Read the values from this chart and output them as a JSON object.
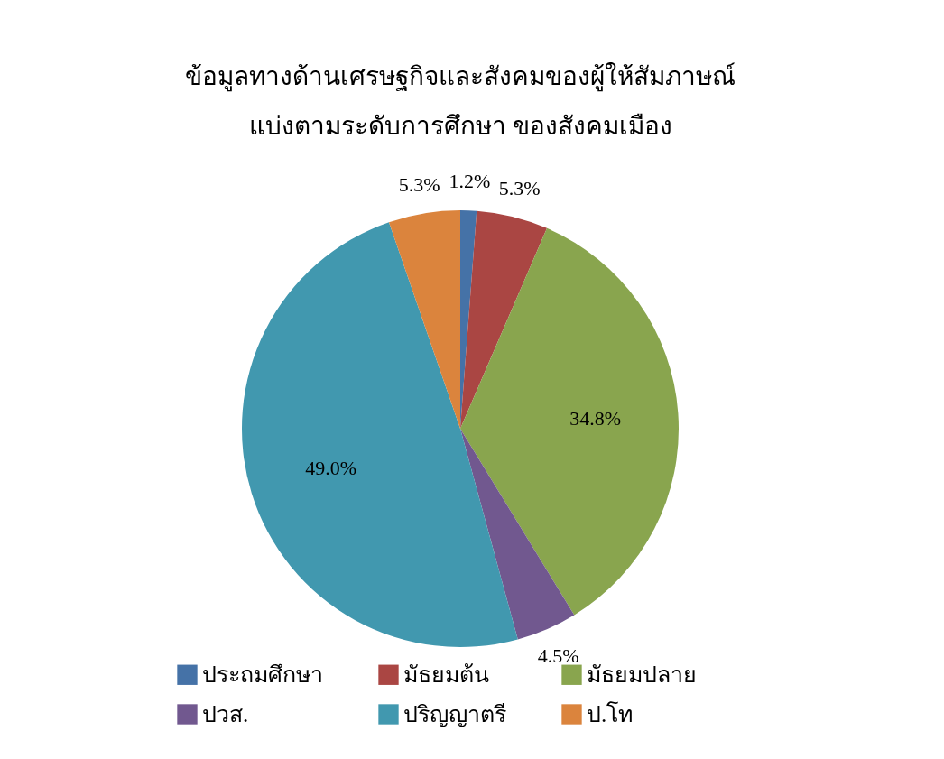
{
  "chart_data": {
    "type": "pie",
    "title": "ข้อมูลทางด้านเศรษฐกิจและสังคมของผู้ให้สัมภาษณ์\nแบ่งตามระดับการศึกษา ของสังคมเมือง",
    "categories": [
      "ประถมศึกษา",
      "มัธยมต้น",
      "มัธยมปลาย",
      "ปวส.",
      "ปริญญาตรี",
      "ป.โท"
    ],
    "values": [
      1.2,
      5.3,
      34.8,
      4.5,
      49.0,
      5.3
    ],
    "value_labels": [
      "1.2%",
      "5.3%",
      "34.8%",
      "4.5%",
      "49.0%",
      "5.3%"
    ],
    "colors": [
      "#4572a7",
      "#aa4643",
      "#89a54e",
      "#71588f",
      "#4198af",
      "#db843d"
    ],
    "legend": "bottom"
  }
}
